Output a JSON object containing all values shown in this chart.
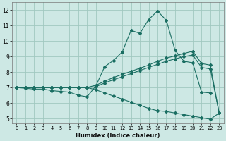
{
  "xlabel": "Humidex (Indice chaleur)",
  "bg_color": "#cde8e4",
  "grid_color": "#a0c8c0",
  "line_color": "#1a6e62",
  "xlim": [
    -0.5,
    23.5
  ],
  "ylim": [
    4.7,
    12.5
  ],
  "yticks": [
    5,
    6,
    7,
    8,
    9,
    10,
    11,
    12
  ],
  "xticks": [
    0,
    1,
    2,
    3,
    4,
    5,
    6,
    7,
    8,
    9,
    10,
    11,
    12,
    13,
    14,
    15,
    16,
    17,
    18,
    19,
    20,
    21,
    22,
    23
  ],
  "line1_x": [
    0,
    1,
    2,
    3,
    4,
    5,
    6,
    7,
    8,
    9,
    10,
    11,
    12,
    13,
    14,
    15,
    16,
    17,
    18,
    19,
    20,
    21,
    22
  ],
  "line1_y": [
    7.0,
    6.95,
    6.9,
    6.9,
    6.8,
    6.75,
    6.7,
    6.5,
    6.4,
    7.1,
    8.35,
    8.75,
    9.3,
    10.7,
    10.5,
    11.4,
    11.95,
    11.35,
    9.4,
    8.7,
    8.6,
    6.7,
    6.65
  ],
  "line2_x": [
    0,
    1,
    2,
    3,
    4,
    5,
    6,
    7,
    8,
    9,
    10,
    11,
    12,
    13,
    14,
    15,
    16,
    17,
    18,
    19,
    20,
    21,
    22,
    23
  ],
  "line2_y": [
    7.0,
    7.0,
    7.0,
    7.0,
    7.0,
    7.0,
    7.0,
    7.0,
    7.0,
    7.15,
    7.4,
    7.65,
    7.85,
    8.05,
    8.25,
    8.45,
    8.7,
    8.9,
    9.05,
    9.2,
    9.35,
    8.55,
    8.45,
    5.35
  ],
  "line3_x": [
    0,
    1,
    2,
    3,
    4,
    5,
    6,
    7,
    8,
    9,
    10,
    11,
    12,
    13,
    14,
    15,
    16,
    17,
    18,
    19,
    20,
    21,
    22,
    23
  ],
  "line3_y": [
    7.0,
    7.0,
    7.0,
    7.0,
    7.0,
    7.0,
    7.0,
    7.0,
    7.0,
    7.05,
    7.3,
    7.5,
    7.7,
    7.9,
    8.1,
    8.3,
    8.5,
    8.7,
    8.85,
    9.0,
    9.1,
    8.3,
    8.2,
    5.35
  ],
  "line4_x": [
    0,
    1,
    2,
    3,
    4,
    5,
    6,
    7,
    8,
    9,
    10,
    11,
    12,
    13,
    14,
    15,
    16,
    17,
    18,
    19,
    20,
    21,
    22,
    23
  ],
  "line4_y": [
    7.0,
    7.0,
    7.0,
    7.0,
    7.0,
    7.0,
    7.0,
    7.0,
    7.0,
    6.85,
    6.65,
    6.45,
    6.25,
    6.05,
    5.85,
    5.65,
    5.5,
    5.45,
    5.35,
    5.25,
    5.15,
    5.05,
    4.95,
    5.35
  ]
}
